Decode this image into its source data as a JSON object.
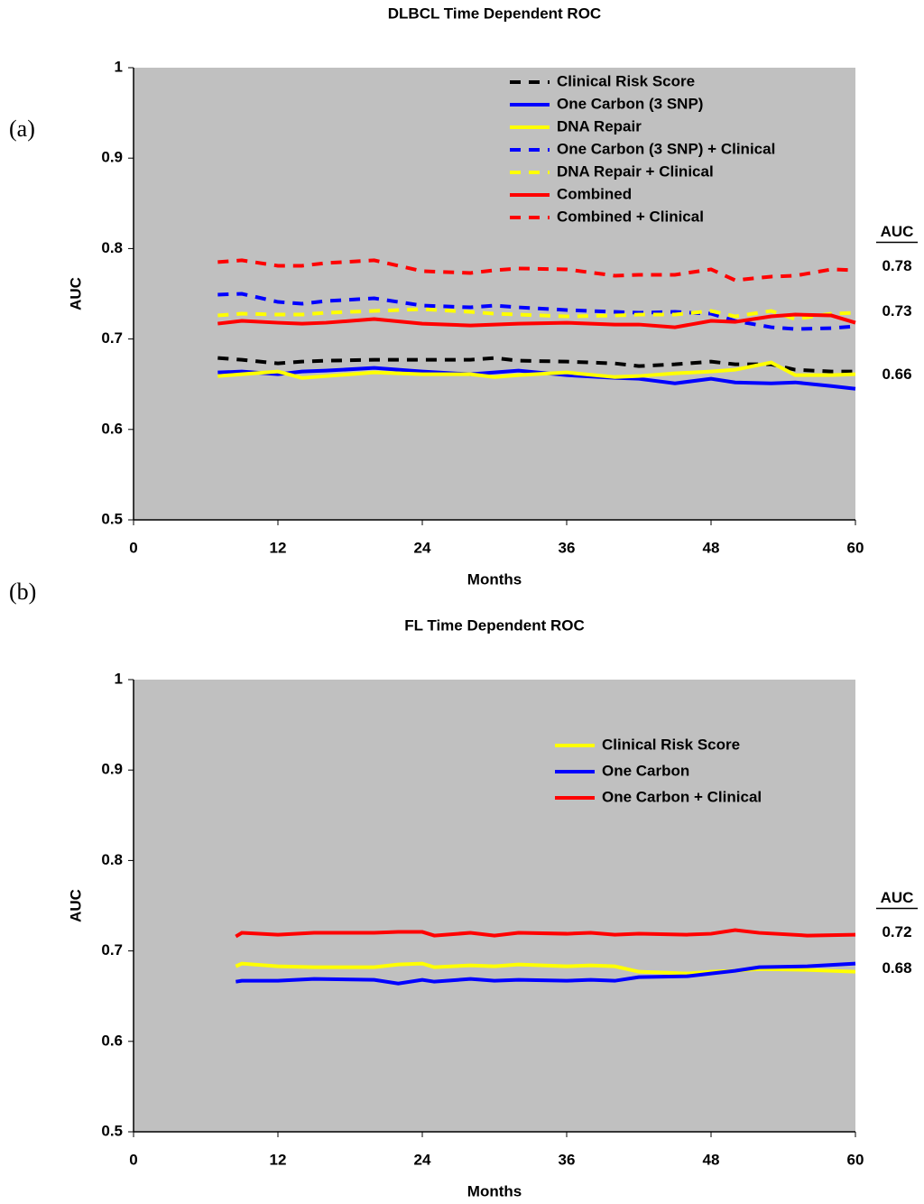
{
  "chart_data": [
    {
      "type": "line",
      "panel": "(a)",
      "title": "DLBCL Time Dependent ROC",
      "xlabel": "Months",
      "ylabel": "AUC",
      "xlim": [
        0,
        60
      ],
      "xticks": [
        0,
        12,
        24,
        36,
        48,
        60
      ],
      "ylim": [
        0.5,
        1
      ],
      "yticks": [
        0.5,
        0.6,
        0.7,
        0.8,
        0.9,
        1
      ],
      "grid": false,
      "background": "#c0c0c0",
      "legend": "upper right",
      "x": [
        7,
        9,
        12,
        14,
        16,
        20,
        24,
        28,
        30,
        32,
        36,
        40,
        42,
        45,
        48,
        50,
        53,
        55,
        58,
        60
      ],
      "series": [
        {
          "name": "Clinical Risk Score",
          "color": "#000000",
          "dashed": true,
          "values": [
            0.679,
            0.677,
            0.673,
            0.675,
            0.676,
            0.677,
            0.677,
            0.677,
            0.679,
            0.676,
            0.675,
            0.673,
            0.67,
            0.672,
            0.675,
            0.672,
            0.672,
            0.666,
            0.664,
            0.664
          ]
        },
        {
          "name": "One Carbon (3 SNP)",
          "color": "#0000ff",
          "dashed": false,
          "values": [
            0.663,
            0.664,
            0.661,
            0.664,
            0.665,
            0.668,
            0.664,
            0.661,
            0.663,
            0.665,
            0.66,
            0.657,
            0.656,
            0.651,
            0.656,
            0.652,
            0.651,
            0.652,
            0.648,
            0.645
          ]
        },
        {
          "name": "DNA Repair",
          "color": "#ffff00",
          "dashed": false,
          "values": [
            0.659,
            0.661,
            0.664,
            0.657,
            0.659,
            0.663,
            0.661,
            0.661,
            0.658,
            0.66,
            0.663,
            0.658,
            0.659,
            0.662,
            0.664,
            0.666,
            0.674,
            0.66,
            0.66,
            0.661
          ]
        },
        {
          "name": "One Carbon (3 SNP) + Clinical",
          "color": "#0000ff",
          "dashed": true,
          "values": [
            0.749,
            0.75,
            0.741,
            0.739,
            0.742,
            0.745,
            0.737,
            0.735,
            0.737,
            0.735,
            0.732,
            0.73,
            0.729,
            0.73,
            0.728,
            0.72,
            0.713,
            0.711,
            0.712,
            0.714
          ]
        },
        {
          "name": "DNA Repair + Clinical",
          "color": "#ffff00",
          "dashed": true,
          "values": [
            0.726,
            0.728,
            0.727,
            0.727,
            0.729,
            0.731,
            0.733,
            0.73,
            0.728,
            0.727,
            0.725,
            0.726,
            0.727,
            0.727,
            0.731,
            0.725,
            0.731,
            0.722,
            0.728,
            0.729
          ]
        },
        {
          "name": "Combined",
          "color": "#ff0000",
          "dashed": false,
          "values": [
            0.717,
            0.72,
            0.718,
            0.717,
            0.718,
            0.722,
            0.717,
            0.715,
            0.716,
            0.717,
            0.718,
            0.716,
            0.716,
            0.713,
            0.72,
            0.719,
            0.725,
            0.727,
            0.726,
            0.718
          ]
        },
        {
          "name": "Combined + Clinical",
          "color": "#ff0000",
          "dashed": true,
          "values": [
            0.785,
            0.787,
            0.781,
            0.781,
            0.784,
            0.787,
            0.775,
            0.773,
            0.776,
            0.778,
            0.777,
            0.77,
            0.771,
            0.771,
            0.777,
            0.765,
            0.769,
            0.77,
            0.777,
            0.776
          ]
        }
      ],
      "side_labels": {
        "header": "AUC",
        "items": [
          {
            "value": 0.78,
            "color": "#000000"
          },
          {
            "value": 0.73,
            "color": "#000000"
          },
          {
            "value": 0.66,
            "color": "#000000"
          }
        ]
      }
    },
    {
      "type": "line",
      "panel": "(b)",
      "title": "FL Time Dependent ROC",
      "xlabel": "Months",
      "ylabel": "AUC",
      "xlim": [
        0,
        60
      ],
      "xticks": [
        0,
        12,
        24,
        36,
        48,
        60
      ],
      "ylim": [
        0.5,
        1
      ],
      "yticks": [
        0.5,
        0.6,
        0.7,
        0.8,
        0.9,
        1
      ],
      "grid": false,
      "background": "#c0c0c0",
      "legend": "upper right",
      "x": [
        8.5,
        9,
        12,
        15,
        20,
        22,
        24,
        25,
        28,
        30,
        32,
        36,
        38,
        40,
        42,
        46,
        48,
        50,
        52,
        56,
        60
      ],
      "series": [
        {
          "name": "Clinical Risk Score",
          "color": "#ffff00",
          "dashed": false,
          "values": [
            0.683,
            0.686,
            0.683,
            0.682,
            0.682,
            0.685,
            0.686,
            0.682,
            0.684,
            0.683,
            0.685,
            0.683,
            0.684,
            0.683,
            0.677,
            0.675,
            0.677,
            0.678,
            0.68,
            0.679,
            0.677
          ]
        },
        {
          "name": "One Carbon",
          "color": "#0000ff",
          "dashed": false,
          "values": [
            0.666,
            0.667,
            0.667,
            0.669,
            0.668,
            0.664,
            0.668,
            0.666,
            0.669,
            0.667,
            0.668,
            0.667,
            0.668,
            0.667,
            0.671,
            0.672,
            0.675,
            0.678,
            0.682,
            0.683,
            0.686
          ]
        },
        {
          "name": "One Carbon + Clinical",
          "color": "#ff0000",
          "dashed": false,
          "values": [
            0.716,
            0.72,
            0.718,
            0.72,
            0.72,
            0.721,
            0.721,
            0.717,
            0.72,
            0.717,
            0.72,
            0.719,
            0.72,
            0.718,
            0.719,
            0.718,
            0.719,
            0.723,
            0.72,
            0.717,
            0.718
          ]
        }
      ],
      "side_labels": {
        "header": "AUC",
        "items": [
          {
            "value": 0.72,
            "color": "#ff0000"
          },
          {
            "value": 0.68,
            "color": "#0000ff"
          }
        ]
      }
    }
  ]
}
